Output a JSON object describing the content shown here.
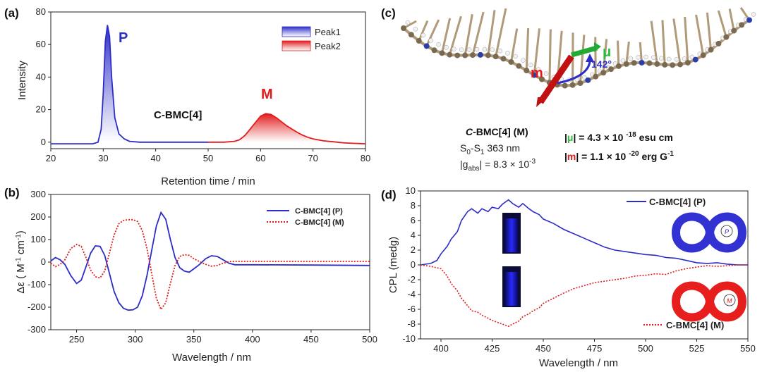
{
  "panels": {
    "a": {
      "letter": "(a)"
    },
    "b": {
      "letter": "(b)"
    },
    "c": {
      "letter": "(c)"
    },
    "d": {
      "letter": "(d)"
    }
  },
  "colors": {
    "blue": "#2c2cc8",
    "red": "#e11b1b",
    "green": "#2dbb3c"
  },
  "molecule": {
    "labels": {
      "m": "m",
      "mu": "μ",
      "angle": "142°"
    },
    "text": {
      "title": "C-BMC[4] (M)",
      "transition": "S0-S1  363 nm",
      "gabs": "|gabs| = 8.3 × 10-3",
      "mu_value": "|μ| = 4.3 × 10 -18 esu cm",
      "m_value": "|m| = 1.1 × 10 -20 erg G-1"
    }
  },
  "chart_data": [
    {
      "panel": "a",
      "type": "area",
      "xlabel": "Retention time / min",
      "ylabel": "Intensity",
      "xlim": [
        20,
        80
      ],
      "ylim": [
        -4,
        80
      ],
      "xticks": [
        20,
        30,
        40,
        50,
        60,
        70,
        80
      ],
      "yticks": [
        0,
        20,
        40,
        60,
        80
      ],
      "legend": [
        "Peak1",
        "Peak2"
      ],
      "legend_position": "top-right",
      "annotations": {
        "peak1": "P",
        "peak2": "M",
        "compound": "C-BMC[4]"
      },
      "series": [
        {
          "name": "Peak1",
          "color": "#2c2cc8",
          "x": [
            20,
            28.0,
            29.0,
            29.6,
            30.0,
            30.4,
            30.8,
            31.2,
            31.6,
            32.2,
            33.0,
            34.0,
            35.0,
            37.0,
            40,
            45,
            50
          ],
          "y": [
            -1,
            -1,
            0,
            8,
            30,
            62,
            72,
            65,
            40,
            15,
            5,
            2,
            0.5,
            0,
            0,
            0,
            0
          ]
        },
        {
          "name": "Peak2",
          "color": "#e11b1b",
          "x": [
            50,
            53,
            55,
            56,
            57,
            58,
            59,
            60,
            61,
            62,
            63,
            64,
            65,
            66,
            67,
            68,
            69,
            70,
            72,
            74,
            76,
            80
          ],
          "y": [
            0,
            0,
            0.5,
            1.5,
            4,
            8,
            12,
            16,
            17.5,
            17,
            15,
            12.5,
            10,
            8,
            6,
            4.3,
            3,
            2,
            0.8,
            0.2,
            -0.5,
            -1
          ]
        }
      ]
    },
    {
      "panel": "b",
      "type": "line",
      "xlabel": "Wavelength / nm",
      "ylabel": "Δε ( M-1 cm-1)",
      "xlim": [
        228,
        500
      ],
      "ylim": [
        -300,
        300
      ],
      "xticks": [
        250,
        300,
        350,
        400,
        450,
        500
      ],
      "yticks": [
        -300,
        -200,
        -100,
        0,
        100,
        200,
        300
      ],
      "legend_position": "top-right",
      "series": [
        {
          "name": "C-BMC[4] (P)",
          "color": "#2c2cc8",
          "dash": "solid",
          "x": [
            228,
            232,
            236,
            240,
            245,
            250,
            254,
            258,
            262,
            266,
            270,
            274,
            278,
            282,
            286,
            290,
            294,
            298,
            302,
            306,
            310,
            314,
            318,
            322,
            326,
            330,
            334,
            338,
            342,
            346,
            350,
            355,
            360,
            365,
            370,
            375,
            380,
            385,
            390,
            400,
            450,
            500
          ],
          "y": [
            5,
            20,
            10,
            -10,
            -60,
            -95,
            -80,
            -20,
            40,
            72,
            70,
            30,
            -50,
            -130,
            -180,
            -205,
            -213,
            -212,
            -200,
            -150,
            -60,
            50,
            160,
            220,
            190,
            100,
            20,
            -25,
            -40,
            -45,
            -30,
            -10,
            15,
            28,
            25,
            10,
            -5,
            -12,
            -12,
            -12,
            -13,
            -15
          ]
        },
        {
          "name": "C-BMC[4] (M)",
          "color": "#e11b1b",
          "dash": "dotted",
          "x": [
            228,
            232,
            236,
            240,
            245,
            250,
            254,
            258,
            262,
            266,
            270,
            274,
            278,
            282,
            286,
            290,
            294,
            298,
            302,
            306,
            310,
            314,
            318,
            322,
            326,
            330,
            334,
            338,
            342,
            346,
            350,
            355,
            360,
            365,
            370,
            375,
            380,
            385,
            390,
            400,
            450,
            500
          ],
          "y": [
            -5,
            -20,
            -10,
            10,
            60,
            78,
            70,
            20,
            -35,
            -65,
            -70,
            -40,
            40,
            120,
            170,
            185,
            188,
            188,
            180,
            140,
            60,
            -50,
            -160,
            -210,
            -180,
            -95,
            -15,
            25,
            33,
            30,
            15,
            2,
            -10,
            -18,
            -15,
            -5,
            2,
            3,
            3,
            3,
            3,
            3
          ]
        }
      ]
    },
    {
      "panel": "d",
      "type": "line",
      "xlabel": "Wavelength / nm",
      "ylabel": "CPL (medg)",
      "xlim": [
        390,
        550
      ],
      "ylim": [
        -10,
        10
      ],
      "xticks": [
        400,
        425,
        450,
        475,
        500,
        525,
        550
      ],
      "yticks": [
        -10,
        -8,
        -6,
        -4,
        -2,
        0,
        2,
        4,
        6,
        8,
        10
      ],
      "series": [
        {
          "name": "C-BMC[4] (P)",
          "color": "#2c2cc8",
          "dash": "solid",
          "x": [
            390,
            395,
            398,
            400,
            403,
            405,
            408,
            410,
            413,
            415,
            418,
            420,
            423,
            425,
            428,
            430,
            433,
            435,
            438,
            440,
            443,
            445,
            448,
            450,
            455,
            460,
            465,
            470,
            475,
            480,
            485,
            490,
            495,
            500,
            505,
            510,
            515,
            520,
            525,
            530,
            535,
            540,
            545,
            550
          ],
          "y": [
            0,
            0.2,
            0.6,
            1.5,
            2.5,
            3.5,
            4.5,
            6,
            7.2,
            7.6,
            7,
            7.6,
            7.2,
            7.8,
            7.6,
            8.2,
            8.8,
            8.3,
            7.8,
            8.3,
            7.6,
            7.2,
            6.8,
            6.2,
            5.6,
            4.8,
            4.2,
            3.6,
            3.0,
            2.4,
            2.0,
            1.8,
            1.6,
            1.4,
            1.3,
            1.0,
            0.9,
            0.6,
            0.3,
            0.2,
            0.3,
            0.1,
            0,
            0
          ]
        },
        {
          "name": "C-BMC[4] (M)",
          "color": "#e11b1b",
          "dash": "dotted",
          "x": [
            390,
            395,
            400,
            403,
            405,
            408,
            410,
            413,
            415,
            418,
            420,
            423,
            425,
            428,
            430,
            433,
            435,
            438,
            440,
            443,
            445,
            448,
            450,
            455,
            460,
            465,
            470,
            475,
            480,
            485,
            490,
            495,
            500,
            505,
            510,
            515,
            520,
            525,
            530,
            535,
            540,
            545,
            550
          ],
          "y": [
            0,
            -0.2,
            -0.5,
            -1.5,
            -2.5,
            -3.5,
            -4.5,
            -5.5,
            -6.2,
            -6.4,
            -6.8,
            -7.2,
            -7.5,
            -7.8,
            -8.0,
            -8.3,
            -8.0,
            -7.6,
            -7.0,
            -6.6,
            -6.2,
            -5.8,
            -5.2,
            -4.5,
            -3.8,
            -3.2,
            -2.8,
            -2.4,
            -2.2,
            -2.0,
            -1.8,
            -1.5,
            -1.4,
            -1.2,
            -1.3,
            -0.8,
            -0.5,
            -0.3,
            -0.1,
            -0.2,
            -0.1,
            0,
            0
          ]
        }
      ]
    }
  ]
}
